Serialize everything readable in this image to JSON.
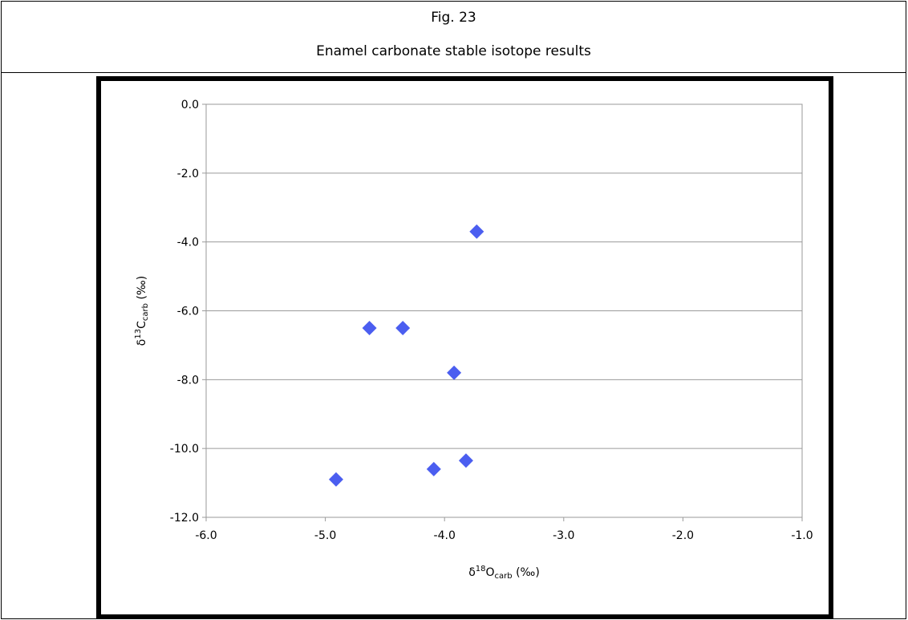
{
  "figure": {
    "label": "Fig. 23",
    "caption": "Enamel carbonate stable isotope results"
  },
  "chart_data": {
    "type": "scatter",
    "title": "",
    "xlabel_main": "δ",
    "xlabel_sup": "18",
    "xlabel_element": "O",
    "xlabel_sub": "carb",
    "xlabel_unit": " (‰)",
    "ylabel_main": "δ",
    "ylabel_sup": "13",
    "ylabel_element": "C",
    "ylabel_sub": "carb",
    "ylabel_unit": " (‰)",
    "xlim": [
      -6.0,
      -1.0
    ],
    "ylim": [
      -12.0,
      0.0
    ],
    "xticks": [
      -6.0,
      -5.0,
      -4.0,
      -3.0,
      -2.0,
      -1.0
    ],
    "yticks": [
      0.0,
      -2.0,
      -4.0,
      -6.0,
      -8.0,
      -10.0,
      -12.0
    ],
    "xtick_labels": [
      "-6.0",
      "-5.0",
      "-4.0",
      "-3.0",
      "-2.0",
      "-1.0"
    ],
    "ytick_labels": [
      "0.0",
      "-2.0",
      "-4.0",
      "-6.0",
      "-8.0",
      "-10.0",
      "-12.0"
    ],
    "grid": "horizontal",
    "marker_color": "#4b5ef0",
    "points": [
      {
        "x": -3.73,
        "y": -3.7
      },
      {
        "x": -4.63,
        "y": -6.5
      },
      {
        "x": -4.35,
        "y": -6.5
      },
      {
        "x": -3.92,
        "y": -7.8
      },
      {
        "x": -4.09,
        "y": -10.6
      },
      {
        "x": -3.82,
        "y": -10.35
      },
      {
        "x": -4.91,
        "y": -10.9
      }
    ]
  }
}
